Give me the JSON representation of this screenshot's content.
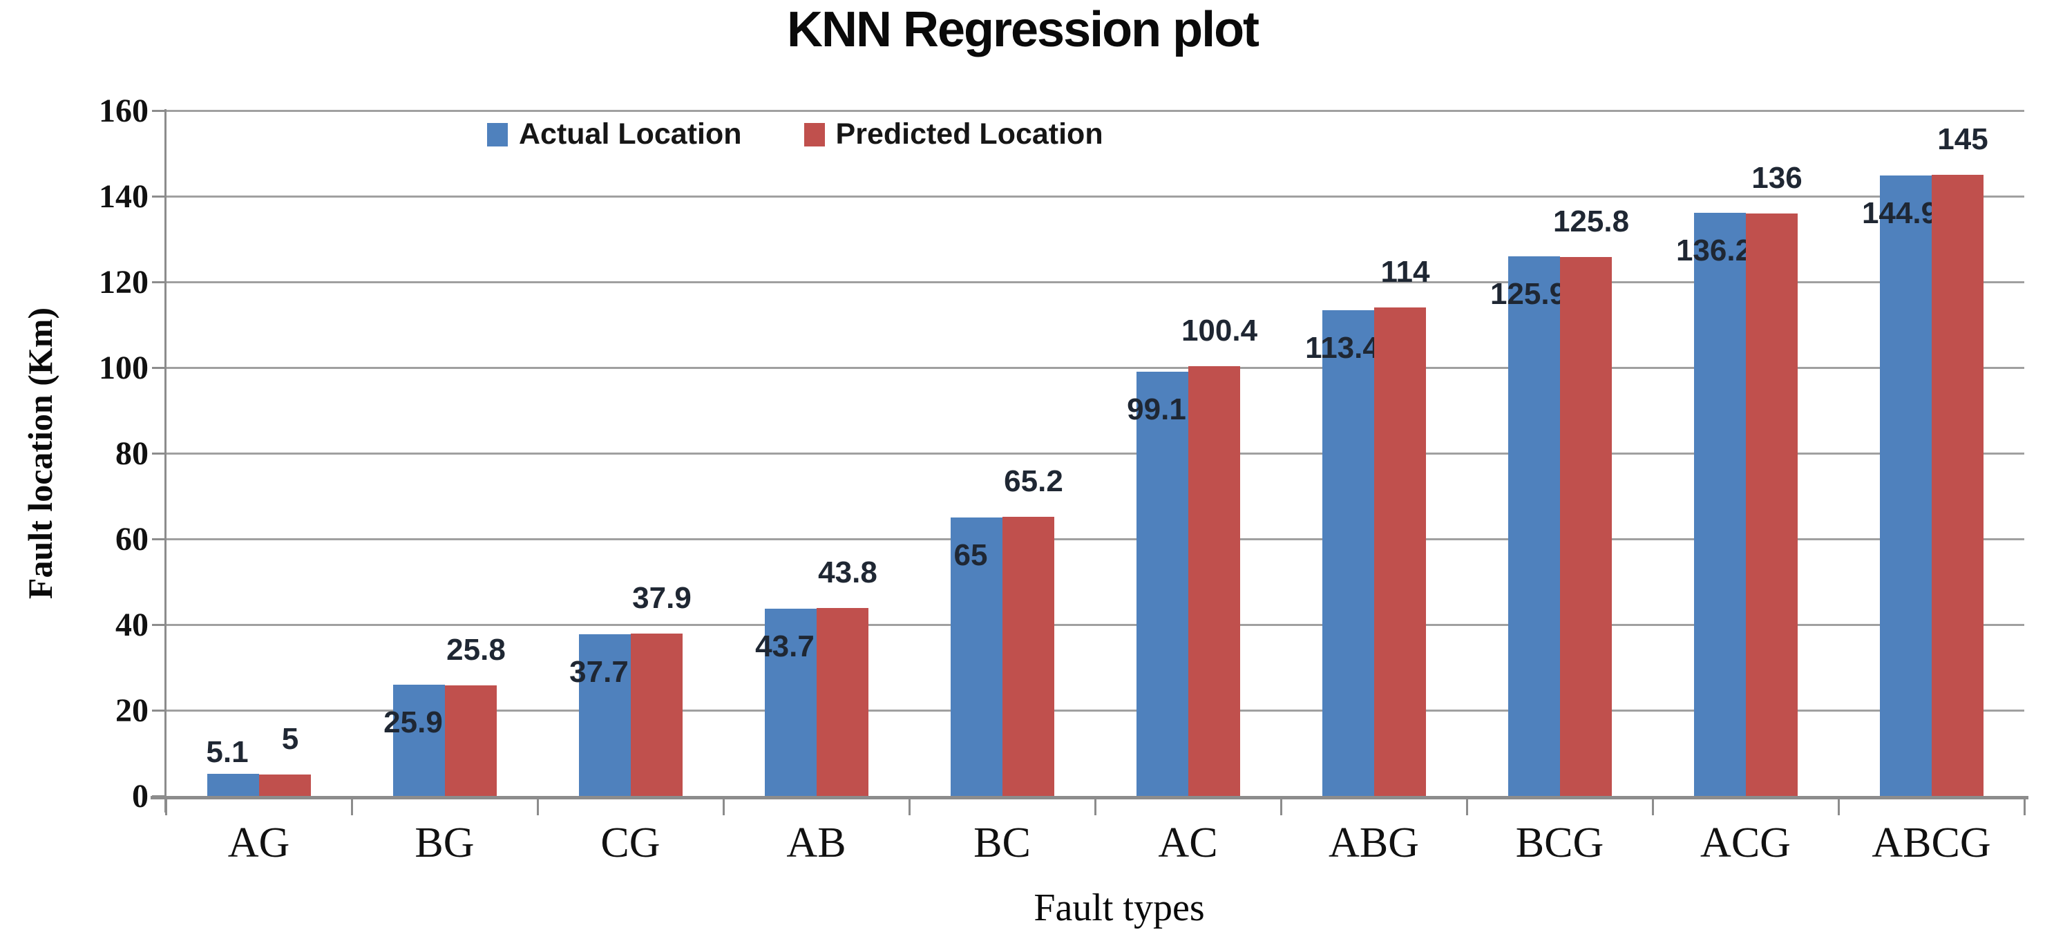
{
  "chart_data": {
    "type": "bar",
    "title": "KNN Regression plot",
    "xlabel": "Fault types",
    "ylabel": "Fault location (Km)",
    "categories": [
      "AG",
      "BG",
      "CG",
      "AB",
      "BC",
      "AC",
      "ABG",
      "BCG",
      "ACG",
      "ABCG"
    ],
    "series": [
      {
        "name": "Actual Location",
        "color": "#4F81BD",
        "values": [
          5.1,
          25.9,
          37.7,
          43.7,
          65,
          99.1,
          113.4,
          125.9,
          136.2,
          144.9
        ]
      },
      {
        "name": "Predicted Location",
        "color": "#C0504D",
        "values": [
          5,
          25.8,
          37.9,
          43.8,
          65.2,
          100.4,
          114,
          125.8,
          136,
          145
        ]
      }
    ],
    "ylim": [
      0,
      160
    ],
    "ytick_step": 20,
    "yticks": [
      0,
      20,
      40,
      60,
      80,
      100,
      120,
      140,
      160
    ],
    "grid": true,
    "legend_position": "top-inside",
    "data_labels": true,
    "colors": {
      "gridline": "#a0a0a0",
      "axis": "#8c8c8c",
      "label_text": "#1f2733"
    }
  }
}
